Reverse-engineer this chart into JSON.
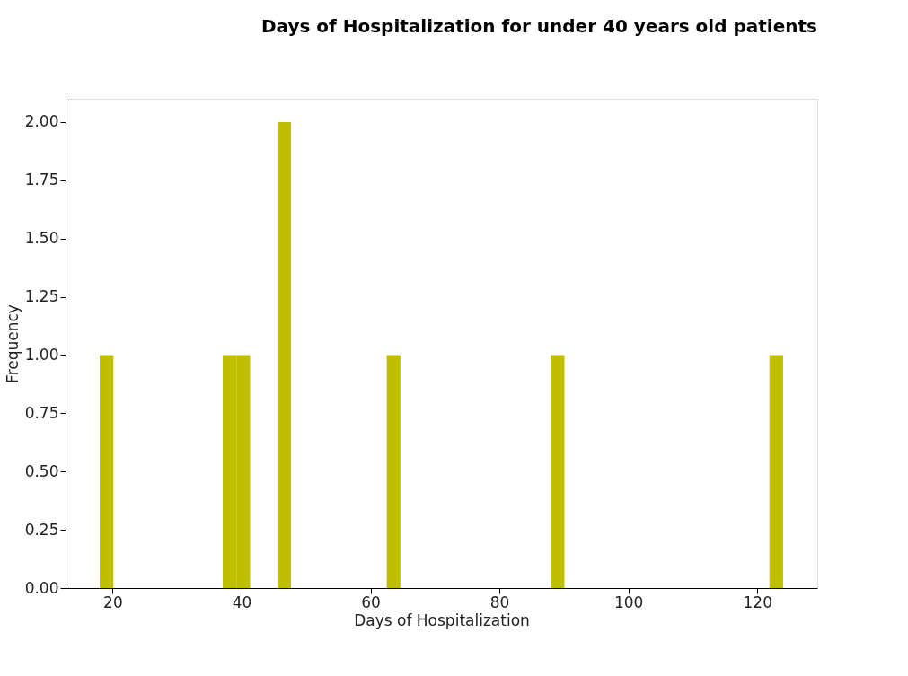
{
  "chart_data": {
    "type": "histogram",
    "title": "Days of Hospitalization for under 40 years old patients",
    "xlabel": "Days of Hospitalization",
    "ylabel": "Frequency",
    "bins": [
      18,
      20.12,
      22.24,
      24.36,
      26.48,
      28.6,
      30.72,
      32.84,
      34.96,
      37.08,
      39.2,
      41.32,
      43.44,
      45.56,
      47.68,
      49.8,
      51.92,
      54.04,
      56.16,
      58.28,
      60.4,
      62.52,
      64.64,
      66.76,
      68.88,
      71,
      73.12,
      75.24,
      77.36,
      79.48,
      81.6,
      83.72,
      85.84,
      87.96,
      90.08,
      92.2,
      94.32,
      96.44,
      98.56,
      100.68,
      102.8,
      104.92,
      107.04,
      109.16,
      111.28,
      113.4,
      115.52,
      117.64,
      119.76,
      121.88,
      124
    ],
    "values": [
      1,
      0,
      0,
      0,
      0,
      0,
      0,
      0,
      0,
      1,
      1,
      0,
      0,
      2,
      0,
      0,
      0,
      0,
      0,
      0,
      0,
      1,
      0,
      0,
      0,
      0,
      0,
      0,
      0,
      0,
      0,
      0,
      0,
      1,
      0,
      0,
      0,
      0,
      0,
      0,
      0,
      0,
      0,
      0,
      0,
      0,
      0,
      0,
      0,
      1
    ],
    "color": "#bfbf00",
    "xlim": [
      12.7,
      129.3
    ],
    "xticks": [
      20,
      40,
      60,
      80,
      100,
      120
    ],
    "ylim": [
      0,
      2.1
    ],
    "yticks": [
      {
        "value": 0,
        "label": "0.00"
      },
      {
        "value": 0.25,
        "label": "0.25"
      },
      {
        "value": 0.5,
        "label": "0.50"
      },
      {
        "value": 0.75,
        "label": "0.75"
      },
      {
        "value": 1,
        "label": "1.00"
      },
      {
        "value": 1.25,
        "label": "1.25"
      },
      {
        "value": 1.5,
        "label": "1.50"
      },
      {
        "value": 1.75,
        "label": "1.75"
      },
      {
        "value": 2,
        "label": "2.00"
      }
    ],
    "grid": false
  }
}
